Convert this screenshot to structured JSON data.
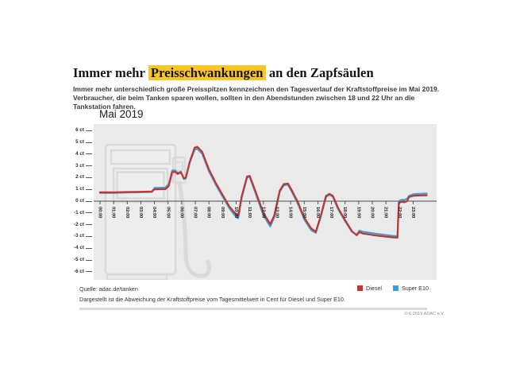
{
  "header": {
    "title_prefix": "Immer mehr",
    "title_highlight": "Preisschwankungen",
    "title_suffix": "an den Zapfsäulen",
    "highlight_color": "#f9c623",
    "subtitle_line1": "Immer mehr unterschiedlich große Preisspitzen kennzeichnen den Tagesverlauf der Kraftstoffpreise im Mai 2019.",
    "subtitle_line2": "Verbraucher, die beim Tanken sparen wollen, sollten in den Abendstunden zwischen 18 und 22 Uhr an die Tankstation fahren."
  },
  "chart_data": {
    "type": "line",
    "title": "Mai 2019",
    "ylabel": "ct",
    "ylim": [
      -6,
      6
    ],
    "grid": false,
    "plot_background": "#eaeaea",
    "zero_line_color": "#4a4a4a",
    "legend_position": "bottom-right",
    "y_ticks": [
      {
        "value": 6,
        "label": "6 ct"
      },
      {
        "value": 5,
        "label": "5 ct"
      },
      {
        "value": 4,
        "label": "4 ct"
      },
      {
        "value": 3,
        "label": "3 ct"
      },
      {
        "value": 2,
        "label": "2 ct"
      },
      {
        "value": 1,
        "label": "1 ct"
      },
      {
        "value": 0,
        "label": "0 ct"
      },
      {
        "value": -1,
        "label": "-1 ct"
      },
      {
        "value": -2,
        "label": "-2 ct"
      },
      {
        "value": -3,
        "label": "-3 ct"
      },
      {
        "value": -4,
        "label": "-4 ct"
      },
      {
        "value": -5,
        "label": "-5 ct"
      },
      {
        "value": -6,
        "label": "-6 ct"
      }
    ],
    "x_labels": [
      "00:00",
      "01:00",
      "02:00",
      "03:00",
      "04:00",
      "05:00",
      "06:00",
      "07:00",
      "08:00",
      "09:00",
      "10:00",
      "11:00",
      "12:00",
      "13:00",
      "14:00",
      "15:00",
      "16:00",
      "17:00",
      "18:00",
      "19:00",
      "20:00",
      "21:00",
      "22:00",
      "23:00"
    ],
    "x_hours": [
      0,
      1,
      2,
      3,
      3.8,
      4.0,
      4.8,
      5.05,
      5.3,
      5.5,
      5.7,
      5.95,
      6.15,
      6.3,
      6.6,
      6.95,
      7.15,
      7.5,
      8.0,
      8.5,
      9.0,
      9.5,
      10.0,
      10.15,
      10.4,
      10.8,
      11.0,
      11.4,
      12.0,
      12.5,
      12.8,
      13.2,
      13.5,
      13.8,
      14.0,
      14.5,
      15.0,
      15.5,
      15.85,
      16.2,
      16.6,
      16.85,
      17.1,
      17.5,
      18.0,
      18.5,
      18.85,
      19.05,
      19.3,
      20.0,
      21.0,
      21.55,
      21.85,
      21.95,
      22.15,
      22.35,
      22.55,
      22.7,
      23.0,
      23.4,
      24.0
    ],
    "series": [
      {
        "name": "Diesel",
        "color": "#c63430",
        "values": [
          0.75,
          0.75,
          0.78,
          0.8,
          0.82,
          1.0,
          1.02,
          1.3,
          2.45,
          2.5,
          2.32,
          2.45,
          1.95,
          2.0,
          3.4,
          4.55,
          4.62,
          4.2,
          2.7,
          1.55,
          0.55,
          -0.45,
          -1.15,
          -1.25,
          0.4,
          2.1,
          2.15,
          0.9,
          -1.0,
          -1.95,
          -1.2,
          0.9,
          1.45,
          1.5,
          1.1,
          0.0,
          -1.4,
          -2.3,
          -2.6,
          -1.3,
          0.45,
          0.62,
          0.45,
          -0.6,
          -1.6,
          -2.55,
          -2.9,
          -2.62,
          -2.75,
          -2.88,
          -3.02,
          -3.08,
          -3.1,
          -0.15,
          -0.05,
          -0.1,
          0.0,
          0.35,
          0.45,
          0.48,
          0.5
        ]
      },
      {
        "name": "Super E10",
        "color": "#3ba0d9",
        "values": [
          0.7,
          0.7,
          0.73,
          0.76,
          0.78,
          1.12,
          1.15,
          1.45,
          2.6,
          2.62,
          2.42,
          2.5,
          1.88,
          1.92,
          3.3,
          4.38,
          4.45,
          4.05,
          2.55,
          1.4,
          0.4,
          -0.6,
          -1.35,
          -1.45,
          0.25,
          2.0,
          2.05,
          0.75,
          -1.2,
          -2.15,
          -1.35,
          0.8,
          1.35,
          1.4,
          1.0,
          -0.15,
          -1.55,
          -2.45,
          -2.7,
          -1.4,
          0.35,
          0.55,
          0.38,
          -0.7,
          -1.7,
          -2.6,
          -2.85,
          -2.5,
          -2.6,
          -2.72,
          -2.88,
          -2.95,
          -2.98,
          0.0,
          0.12,
          0.1,
          0.2,
          0.45,
          0.58,
          0.62,
          0.65
        ]
      }
    ]
  },
  "footer": {
    "source": "Quelle: adac.de/tanken",
    "description": "Dargestellt ist die Abweichung der Kraftstoffpreise vom Tagesmittelwert in Cent für Diesel und Super E10.",
    "copyright": "© 6.2019 ADAC e.V."
  }
}
